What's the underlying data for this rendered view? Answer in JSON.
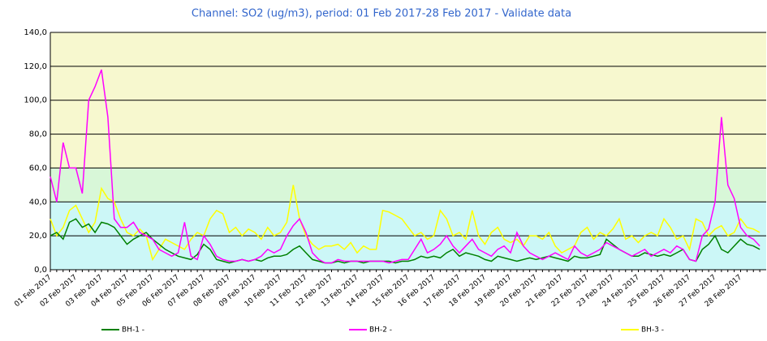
{
  "chart_data": {
    "type": "line",
    "title": "Channel: SO2 (ug/m3), period: 01 Feb 2017-28 Feb 2017 - Validate data",
    "categories": [
      "01 Feb 2017",
      null,
      null,
      null,
      "02 Feb 2017",
      null,
      null,
      null,
      "03 Feb 2017",
      null,
      null,
      null,
      "04 Feb 2017",
      null,
      null,
      null,
      "05 Feb 2017",
      null,
      null,
      null,
      "06 Feb 2017",
      null,
      null,
      null,
      "07 Feb 2017",
      null,
      null,
      null,
      "08 Feb 2017",
      null,
      null,
      null,
      "09 Feb 2017",
      null,
      null,
      null,
      "10 Feb 2017",
      null,
      null,
      null,
      "11 Feb 2017",
      null,
      null,
      null,
      "12 Feb 2017",
      null,
      null,
      null,
      "13 Feb 2017",
      null,
      null,
      null,
      "14 Feb 2017",
      null,
      null,
      null,
      "15 Feb 2017",
      null,
      null,
      null,
      "16 Feb 2017",
      null,
      null,
      null,
      "17 Feb 2017",
      null,
      null,
      null,
      "18 Feb 2017",
      null,
      null,
      null,
      "19 Feb 2017",
      null,
      null,
      null,
      "20 Feb 2017",
      null,
      null,
      null,
      "21 Feb 2017",
      null,
      null,
      null,
      "22 Feb 2017",
      null,
      null,
      null,
      "23 Feb 2017",
      null,
      null,
      null,
      "24 Feb 2017",
      null,
      null,
      null,
      "25 Feb 2017",
      null,
      null,
      null,
      "26 Feb 2017",
      null,
      null,
      null,
      "27 Feb 2017",
      null,
      null,
      null,
      "28 Feb 2017",
      null,
      null,
      null
    ],
    "series": [
      {
        "name": "BH-1 -",
        "color": "#008000",
        "values": [
          20,
          22,
          18,
          28,
          30,
          25,
          27,
          22,
          28,
          27,
          25,
          20,
          15,
          18,
          20,
          22,
          18,
          15,
          12,
          10,
          8,
          7,
          6,
          9,
          15,
          12,
          6,
          5,
          4,
          5,
          6,
          5,
          6,
          5,
          7,
          8,
          8,
          9,
          12,
          14,
          10,
          6,
          5,
          4,
          4,
          5,
          4,
          5,
          5,
          4,
          5,
          5,
          5,
          5,
          4,
          5,
          5,
          6,
          8,
          7,
          8,
          7,
          10,
          12,
          8,
          10,
          9,
          8,
          6,
          5,
          8,
          7,
          6,
          5,
          6,
          7,
          6,
          7,
          8,
          7,
          6,
          5,
          8,
          7,
          7,
          8,
          9,
          18,
          15,
          12,
          10,
          8,
          8,
          10,
          9,
          8,
          9,
          8,
          10,
          12,
          6,
          5,
          12,
          15,
          20,
          12,
          10,
          14,
          18,
          15,
          14,
          12
        ]
      },
      {
        "name": "BH-2 -",
        "color": "#ff00ff",
        "values": [
          55,
          40,
          75,
          60,
          60,
          45,
          100,
          108,
          118,
          90,
          30,
          25,
          25,
          28,
          22,
          20,
          18,
          12,
          10,
          8,
          10,
          28,
          8,
          6,
          20,
          15,
          8,
          6,
          5,
          5,
          6,
          5,
          6,
          8,
          12,
          10,
          12,
          20,
          26,
          30,
          22,
          10,
          6,
          4,
          4,
          6,
          5,
          5,
          5,
          5,
          5,
          5,
          5,
          4,
          5,
          6,
          6,
          12,
          18,
          10,
          12,
          15,
          20,
          14,
          10,
          14,
          18,
          12,
          10,
          8,
          12,
          14,
          10,
          22,
          14,
          10,
          8,
          6,
          8,
          10,
          8,
          6,
          14,
          10,
          8,
          10,
          12,
          16,
          14,
          12,
          10,
          8,
          10,
          12,
          8,
          10,
          12,
          10,
          14,
          12,
          6,
          5,
          20,
          24,
          40,
          90,
          50,
          42,
          25,
          20,
          18,
          14
        ]
      },
      {
        "name": "BH-3 -",
        "color": "#ffff00",
        "values": [
          30,
          20,
          25,
          35,
          38,
          30,
          22,
          28,
          48,
          42,
          40,
          30,
          22,
          20,
          24,
          20,
          6,
          12,
          18,
          16,
          14,
          12,
          18,
          22,
          20,
          30,
          35,
          33,
          22,
          25,
          20,
          24,
          22,
          18,
          25,
          20,
          22,
          28,
          50,
          30,
          20,
          15,
          12,
          14,
          14,
          15,
          12,
          16,
          10,
          14,
          12,
          12,
          35,
          34,
          32,
          30,
          25,
          20,
          22,
          18,
          20,
          35,
          30,
          20,
          22,
          18,
          35,
          20,
          15,
          22,
          25,
          18,
          16,
          18,
          14,
          20,
          20,
          18,
          22,
          14,
          10,
          12,
          14,
          22,
          25,
          18,
          22,
          20,
          24,
          30,
          18,
          20,
          16,
          20,
          22,
          20,
          30,
          25,
          18,
          20,
          12,
          30,
          28,
          20,
          24,
          26,
          20,
          22,
          30,
          25,
          24,
          22
        ]
      }
    ],
    "ylim": [
      0,
      140
    ],
    "yticks": [
      {
        "value": 0,
        "label": "0,0"
      },
      {
        "value": 20,
        "label": "20,0"
      },
      {
        "value": 40,
        "label": "40,0"
      },
      {
        "value": 60,
        "label": "60,0"
      },
      {
        "value": 80,
        "label": "80,0"
      },
      {
        "value": 100,
        "label": "100,0"
      },
      {
        "value": 120,
        "label": "120,0"
      },
      {
        "value": 140,
        "label": "140,0"
      }
    ],
    "grid": true,
    "bands": [
      {
        "from": 0,
        "to": 40,
        "color": "#ccf7f7"
      },
      {
        "from": 40,
        "to": 60,
        "color": "#d8f7d8"
      },
      {
        "from": 60,
        "to": 140,
        "color": "#f7f8cf"
      }
    ],
    "legend": "bottom"
  }
}
